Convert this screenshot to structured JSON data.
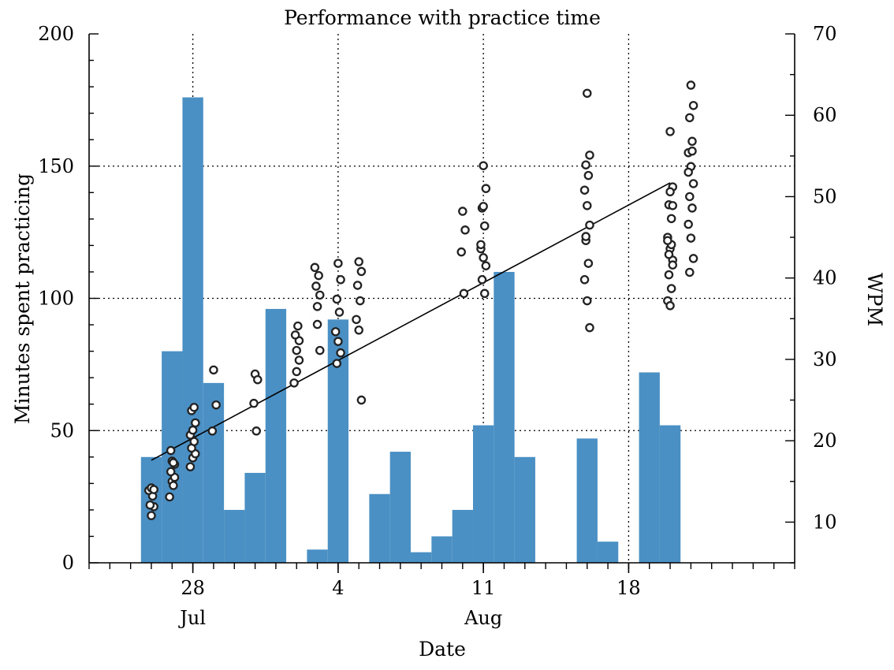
{
  "chart_data": {
    "type": "bar",
    "title": "Performance with practice time",
    "xlabel": "Date",
    "ylabel": "Minutes spent practicing",
    "y2label": "WPM",
    "ylim": [
      0,
      200
    ],
    "y2lim": [
      5,
      70
    ],
    "xlim": [
      "2014-07-23",
      "2014-08-26"
    ],
    "xticks": [
      {
        "x": "2014-07-28",
        "day": "28",
        "month": "Jul"
      },
      {
        "x": "2014-08-04",
        "day": "4",
        "month": ""
      },
      {
        "x": "2014-08-11",
        "day": "11",
        "month": "Aug"
      },
      {
        "x": "2014-08-18",
        "day": "18",
        "month": ""
      }
    ],
    "yticks": [
      0,
      50,
      100,
      150,
      200
    ],
    "y2ticks": [
      10,
      20,
      30,
      40,
      50,
      60,
      70
    ],
    "grid": true,
    "bar_color": "#4a90c4",
    "series": [
      {
        "type": "bar",
        "axis": "left",
        "x": [
          "2014-07-26",
          "2014-07-27",
          "2014-07-28",
          "2014-07-29",
          "2014-07-30",
          "2014-07-31",
          "2014-08-01",
          "2014-08-02",
          "2014-08-03",
          "2014-08-04",
          "2014-08-05",
          "2014-08-06",
          "2014-08-07",
          "2014-08-08",
          "2014-08-09",
          "2014-08-10",
          "2014-08-11",
          "2014-08-12",
          "2014-08-13",
          "2014-08-14",
          "2014-08-15",
          "2014-08-16",
          "2014-08-17",
          "2014-08-18",
          "2014-08-19",
          "2014-08-20"
        ],
        "values": [
          40,
          80,
          176,
          68,
          20,
          34,
          96,
          0,
          5,
          92,
          0,
          26,
          42,
          4,
          10,
          20,
          52,
          110,
          40,
          0,
          0,
          47,
          8,
          0,
          72,
          52
        ]
      },
      {
        "type": "scatter",
        "axis": "right",
        "x": [
          "2014-07-26",
          "2014-07-26",
          "2014-07-26",
          "2014-07-26",
          "2014-07-26",
          "2014-07-26",
          "2014-07-26",
          "2014-07-27",
          "2014-07-27",
          "2014-07-27",
          "2014-07-27",
          "2014-07-27",
          "2014-07-27",
          "2014-07-27",
          "2014-07-27",
          "2014-07-27",
          "2014-07-28",
          "2014-07-28",
          "2014-07-28",
          "2014-07-28",
          "2014-07-28",
          "2014-07-28",
          "2014-07-28",
          "2014-07-28",
          "2014-07-28",
          "2014-07-28",
          "2014-07-29",
          "2014-07-29",
          "2014-07-29",
          "2014-07-31",
          "2014-07-31",
          "2014-07-31",
          "2014-07-31",
          "2014-08-02",
          "2014-08-02",
          "2014-08-02",
          "2014-08-02",
          "2014-08-02",
          "2014-08-02",
          "2014-08-02",
          "2014-08-03",
          "2014-08-03",
          "2014-08-03",
          "2014-08-03",
          "2014-08-03",
          "2014-08-03",
          "2014-08-03",
          "2014-08-04",
          "2014-08-04",
          "2014-08-04",
          "2014-08-04",
          "2014-08-04",
          "2014-08-04",
          "2014-08-04",
          "2014-08-04",
          "2014-08-05",
          "2014-08-05",
          "2014-08-05",
          "2014-08-05",
          "2014-08-05",
          "2014-08-05",
          "2014-08-05",
          "2014-08-10",
          "2014-08-10",
          "2014-08-10",
          "2014-08-10",
          "2014-08-11",
          "2014-08-11",
          "2014-08-11",
          "2014-08-11",
          "2014-08-11",
          "2014-08-11",
          "2014-08-11",
          "2014-08-11",
          "2014-08-11",
          "2014-08-11",
          "2014-08-11",
          "2014-08-16",
          "2014-08-16",
          "2014-08-16",
          "2014-08-16",
          "2014-08-16",
          "2014-08-16",
          "2014-08-16",
          "2014-08-16",
          "2014-08-16",
          "2014-08-16",
          "2014-08-16",
          "2014-08-16",
          "2014-08-16",
          "2014-08-20",
          "2014-08-20",
          "2014-08-20",
          "2014-08-20",
          "2014-08-20",
          "2014-08-20",
          "2014-08-20",
          "2014-08-20",
          "2014-08-20",
          "2014-08-20",
          "2014-08-20",
          "2014-08-20",
          "2014-08-20",
          "2014-08-20",
          "2014-08-20",
          "2014-08-20",
          "2014-08-20",
          "2014-08-21",
          "2014-08-21",
          "2014-08-21",
          "2014-08-21",
          "2014-08-21",
          "2014-08-21",
          "2014-08-21",
          "2014-08-21",
          "2014-08-21",
          "2014-08-21",
          "2014-08-21",
          "2014-08-21",
          "2014-08-21",
          "2014-08-21",
          "2014-08-21"
        ],
        "values": [
          10.8,
          11.9,
          12.1,
          13.2,
          13.9,
          14.2,
          14.0,
          15.0,
          15.5,
          16.2,
          14.5,
          13.1,
          17.5,
          17.1,
          18.8,
          17.3,
          17.9,
          18.4,
          19.1,
          19.9,
          20.7,
          21.3,
          22.2,
          23.7,
          24.1,
          16.8,
          28.7,
          24.4,
          21.2,
          28.2,
          27.5,
          24.6,
          21.2,
          31.1,
          32.3,
          33.0,
          34.1,
          27.1,
          28.5,
          29.9,
          36.5,
          37.9,
          39.0,
          40.3,
          41.3,
          34.3,
          31.1,
          41.8,
          39.8,
          37.4,
          35.8,
          33.4,
          32.2,
          30.8,
          29.5,
          42.0,
          40.8,
          39.1,
          37.2,
          34.9,
          33.6,
          25.0,
          48.2,
          45.9,
          43.2,
          38.1,
          53.8,
          51.0,
          48.6,
          46.4,
          43.6,
          42.5,
          41.5,
          39.8,
          38.1,
          44.1,
          48.8,
          62.7,
          55.1,
          53.9,
          52.6,
          50.8,
          48.9,
          46.5,
          44.6,
          41.8,
          39.8,
          37.2,
          33.9,
          45.1,
          58.0,
          51.2,
          49.0,
          47.3,
          45.0,
          43.6,
          42.2,
          40.4,
          38.7,
          37.2,
          36.6,
          41.6,
          42.9,
          44.1,
          44.6,
          50.6,
          48.9,
          63.7,
          61.2,
          59.7,
          56.8,
          55.4,
          53.7,
          51.6,
          50.0,
          48.6,
          46.6,
          44.9,
          42.4,
          40.7,
          55.6,
          53.0
        ]
      },
      {
        "type": "line",
        "axis": "right",
        "name": "",
        "x": [
          "2014-07-26",
          "2014-08-20"
        ],
        "values": [
          17.6,
          51.7
        ]
      }
    ]
  }
}
